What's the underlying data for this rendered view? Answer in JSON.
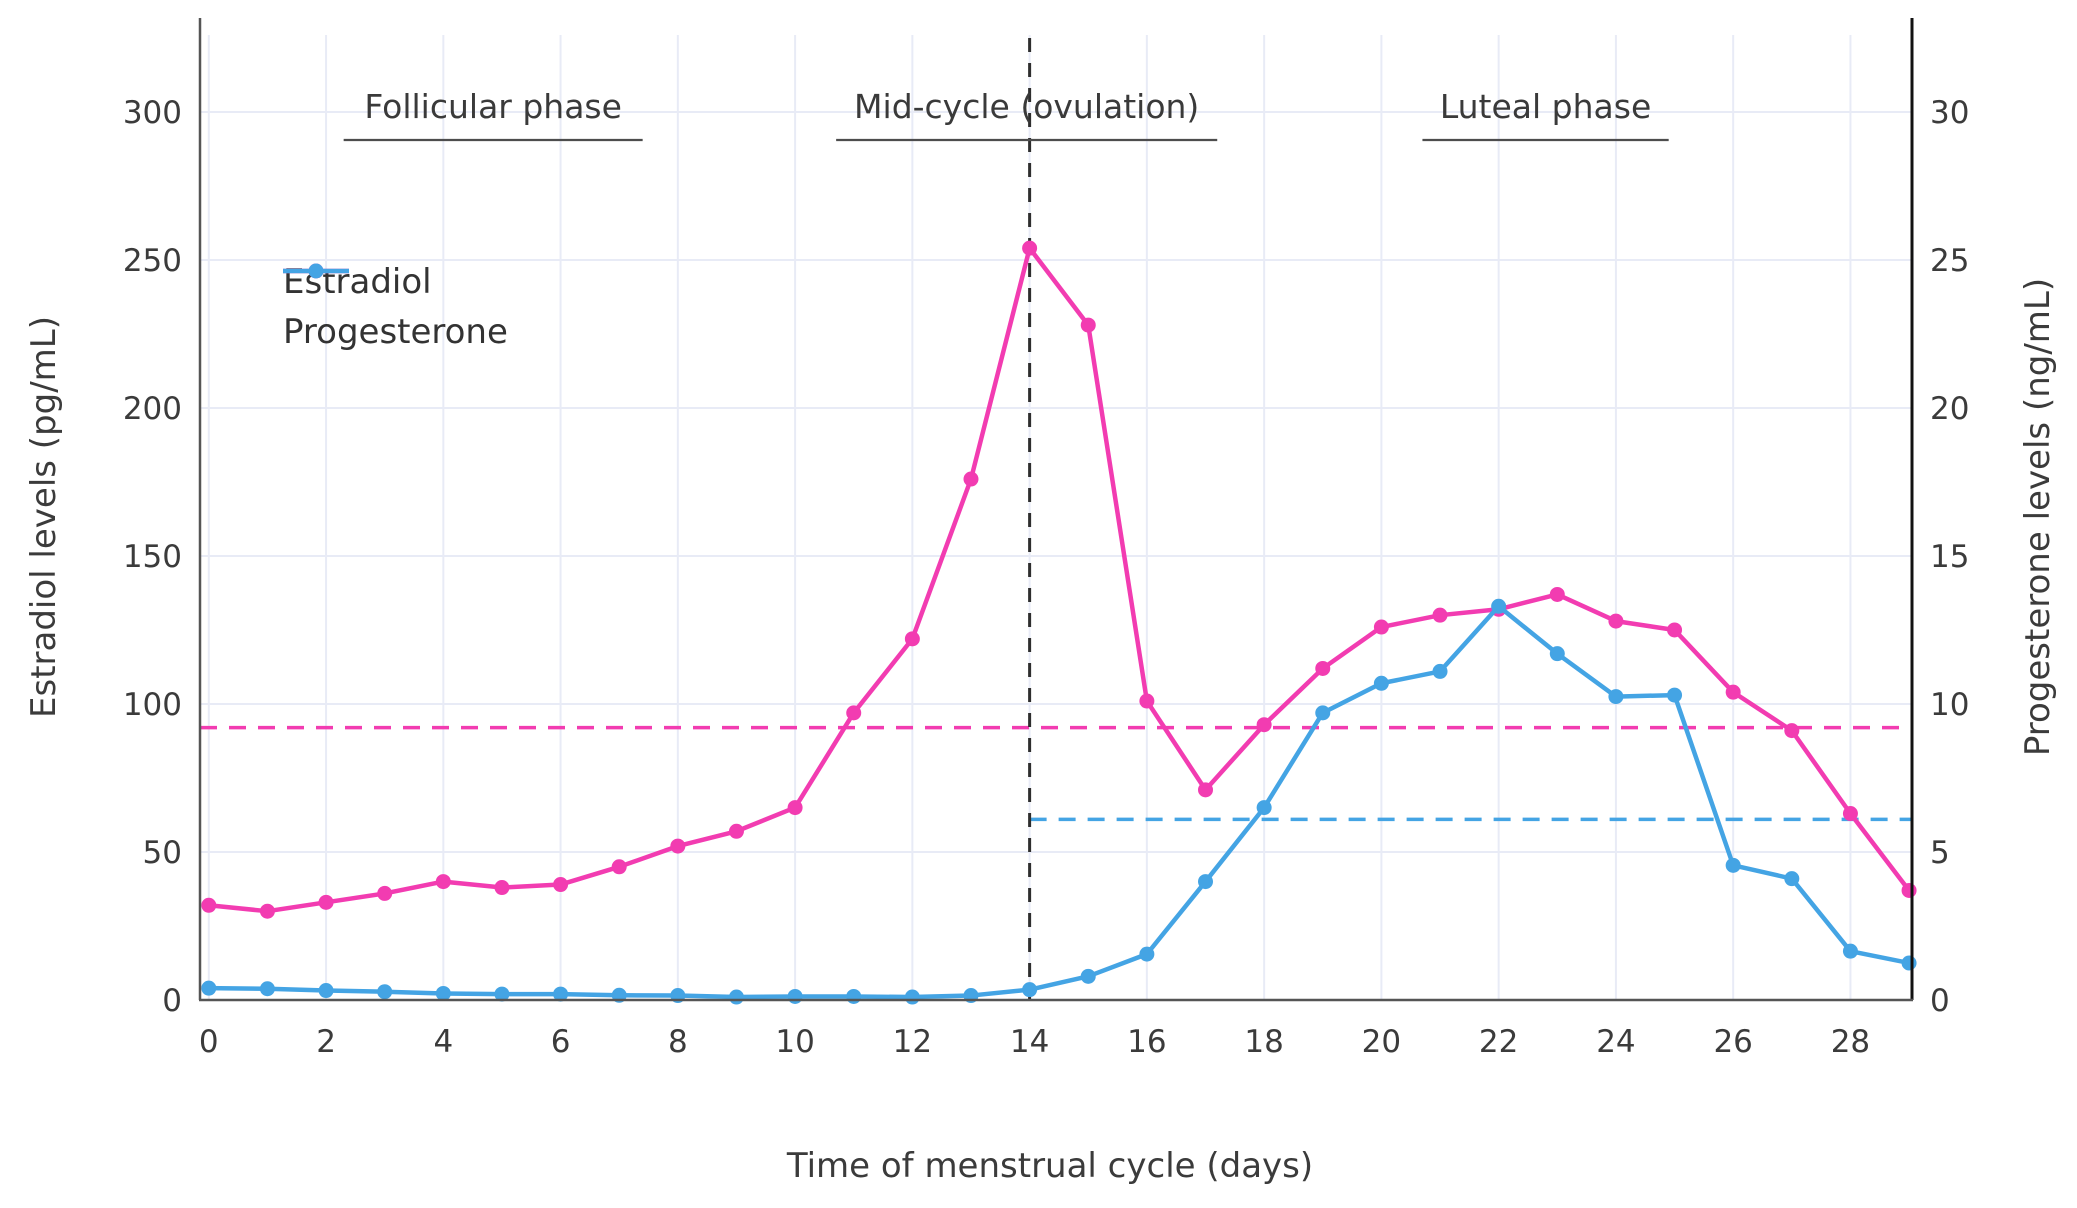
{
  "chart_data": {
    "type": "line",
    "title": "",
    "xlabel": "Time of menstrual cycle (days)",
    "ylabel_left": "Estradiol levels (pg/mL)",
    "ylabel_right": "Progesterone levels (ng/mL)",
    "x": [
      0,
      1,
      2,
      3,
      4,
      5,
      6,
      7,
      8,
      9,
      10,
      11,
      12,
      13,
      14,
      15,
      16,
      17,
      18,
      19,
      20,
      21,
      22,
      23,
      24,
      25,
      26,
      27,
      28,
      29
    ],
    "series": [
      {
        "name": "Estradiol",
        "axis": "left",
        "unit": "pg/mL",
        "color": "#f23cb1",
        "values": [
          32,
          30,
          33,
          36,
          40,
          38,
          39,
          45,
          52,
          57,
          65,
          97,
          122,
          176,
          254,
          228,
          101,
          71,
          93,
          112,
          126,
          130,
          132,
          137,
          128,
          125,
          104,
          91,
          63,
          37
        ]
      },
      {
        "name": "Progesterone",
        "axis": "right",
        "unit": "ng/mL",
        "color": "#44a4e4",
        "values": [
          0.4,
          0.38,
          0.32,
          0.28,
          0.22,
          0.2,
          0.2,
          0.16,
          0.15,
          0.1,
          0.12,
          0.12,
          0.1,
          0.15,
          0.35,
          0.8,
          1.55,
          4.0,
          6.5,
          9.7,
          10.7,
          11.1,
          13.3,
          11.7,
          10.25,
          10.3,
          4.55,
          4.1,
          1.65,
          1.25
        ]
      }
    ],
    "x_ticks": [
      0,
      2,
      4,
      6,
      8,
      10,
      12,
      14,
      16,
      18,
      20,
      22,
      24,
      26,
      28
    ],
    "y_ticks_left": [
      0,
      50,
      100,
      150,
      200,
      250,
      300
    ],
    "y_ticks_right": [
      0,
      5,
      10,
      15,
      20,
      25,
      30
    ],
    "xlim": [
      -0.15,
      29.05
    ],
    "ylim_left": [
      0,
      326
    ],
    "ylim_right": [
      0,
      32.6
    ],
    "grid": true,
    "legend_position": "inside-upper-left",
    "reference_lines": [
      {
        "type": "horizontal",
        "axis": "left",
        "value": 92,
        "x_start": -0.15,
        "x_end": 29.05,
        "color": "#f23cb1",
        "style": "dashed"
      },
      {
        "type": "horizontal",
        "axis": "right",
        "value": 6.1,
        "x_start": 14,
        "x_end": 29.05,
        "color": "#44a4e4",
        "style": "dashed"
      },
      {
        "type": "vertical",
        "value": 14,
        "color": "#2e2e2e",
        "style": "dashed"
      }
    ],
    "annotations": [
      {
        "label": "Follicular phase",
        "underline_from": 2.3,
        "underline_to": 7.4
      },
      {
        "label": "Mid-cycle (ovulation)",
        "underline_from": 10.7,
        "underline_to": 17.2
      },
      {
        "label": "Luteal phase",
        "underline_from": 20.7,
        "underline_to": 24.9
      }
    ],
    "colors": {
      "grid": "#e8ebf6",
      "spine": "#555555",
      "right_spine": "#111111",
      "tick_text": "#3b3b3b",
      "annotation_text": "#3a3a3a",
      "underline": "#4d4d4d"
    }
  }
}
